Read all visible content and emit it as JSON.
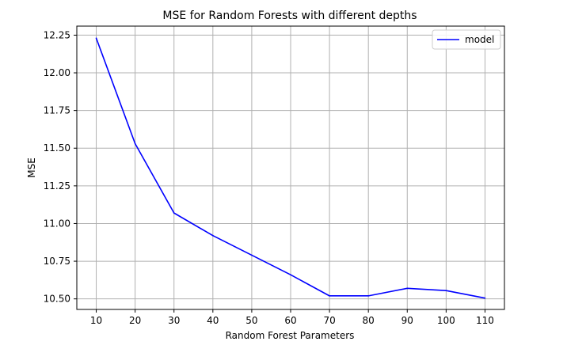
{
  "chart_data": {
    "type": "line",
    "title": "MSE for Random Forests with different depths",
    "xlabel": "Random Forest Parameters",
    "ylabel": "MSE",
    "x": [
      10,
      20,
      30,
      40,
      50,
      60,
      70,
      80,
      90,
      100,
      110
    ],
    "xticks": [
      "10",
      "20",
      "30",
      "40",
      "50",
      "60",
      "70",
      "80",
      "90",
      "100",
      "110"
    ],
    "yticks": [
      "10.50",
      "10.75",
      "11.00",
      "11.25",
      "11.50",
      "11.75",
      "12.00",
      "12.25"
    ],
    "ytick_values": [
      10.5,
      10.75,
      11.0,
      11.25,
      11.5,
      11.75,
      12.0,
      12.25
    ],
    "xlim": [
      5,
      115
    ],
    "ylim": [
      10.43,
      12.31
    ],
    "grid": true,
    "legend_position": "top-right",
    "series": [
      {
        "name": "model",
        "color": "#0000ff",
        "values": [
          12.23,
          11.53,
          11.07,
          10.92,
          10.79,
          10.66,
          10.52,
          10.52,
          10.57,
          10.555,
          10.505
        ]
      }
    ]
  }
}
